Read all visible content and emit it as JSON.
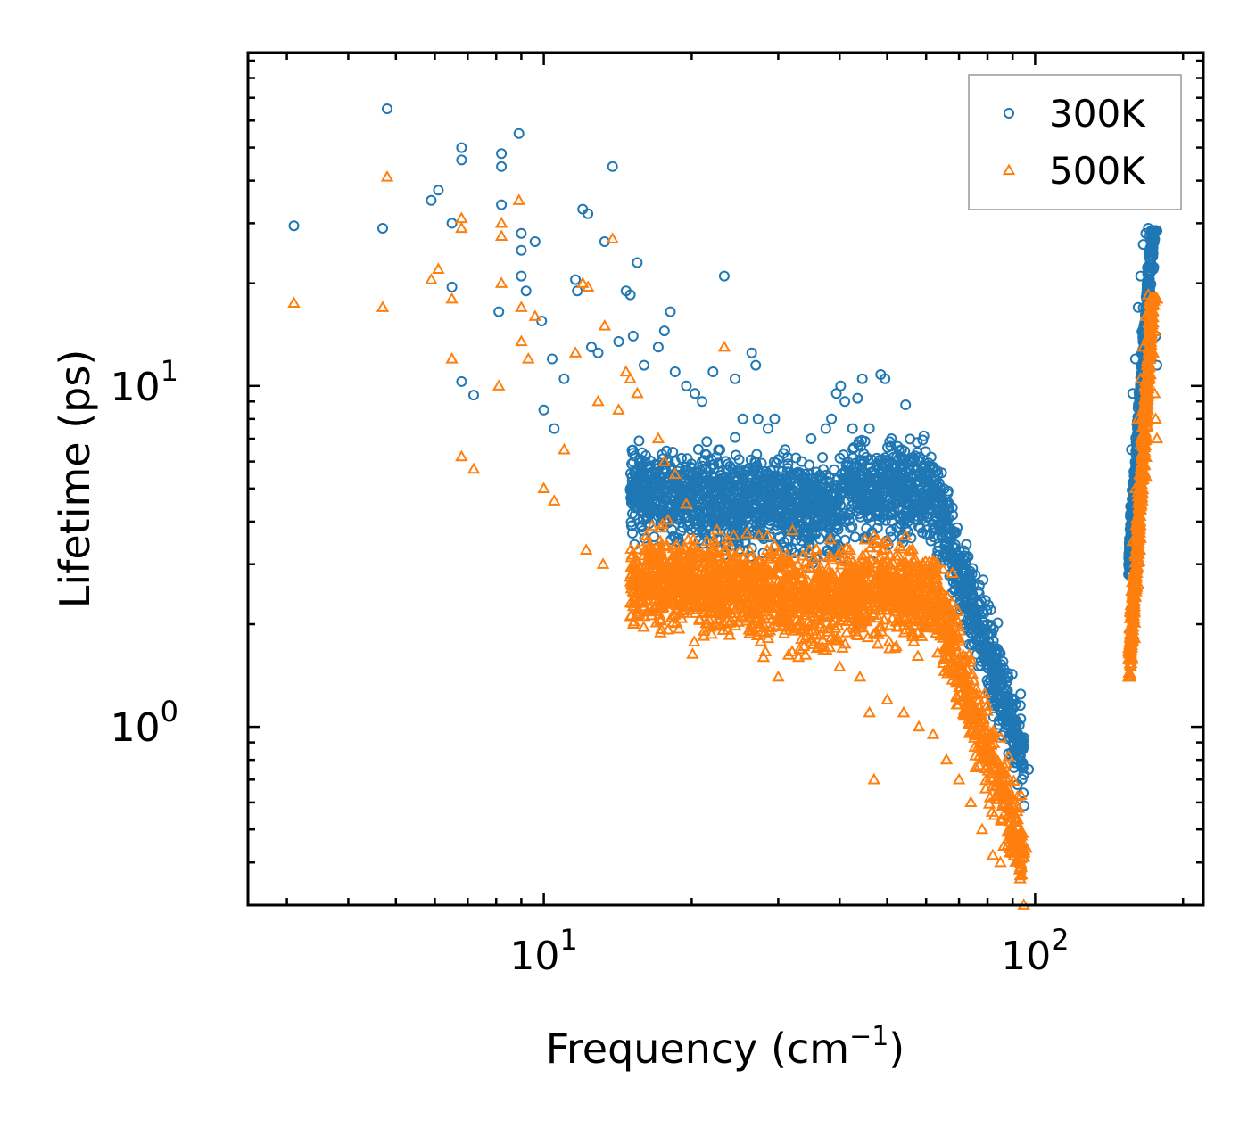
{
  "chart_data": {
    "type": "scatter",
    "title": "",
    "xlabel": "Frequency (cm",
    "xlabel_sup": "−1",
    "xlabel_suffix": ")",
    "ylabel": "Lifetime (ps)",
    "xscale": "log",
    "yscale": "log",
    "xlim": [
      2.5,
      220
    ],
    "ylim": [
      0.3,
      95
    ],
    "x_major_ticks": [
      {
        "value": 10,
        "base": "10",
        "exp": "1"
      },
      {
        "value": 100,
        "base": "10",
        "exp": "2"
      }
    ],
    "y_major_ticks": [
      {
        "value": 1,
        "base": "10",
        "exp": "0"
      },
      {
        "value": 10,
        "base": "10",
        "exp": "1"
      }
    ],
    "legend_position": "top-right",
    "series": [
      {
        "name": "300K",
        "marker": "circle",
        "color": "#1f77b4",
        "points": [
          [
            3.1,
            29.5
          ],
          [
            4.7,
            29
          ],
          [
            4.8,
            65
          ],
          [
            5.9,
            35
          ],
          [
            6.1,
            37.5
          ],
          [
            6.5,
            30
          ],
          [
            6.5,
            19.5
          ],
          [
            6.8,
            50
          ],
          [
            6.8,
            46
          ],
          [
            6.8,
            10.3
          ],
          [
            7.2,
            9.4
          ],
          [
            8.2,
            48
          ],
          [
            8.2,
            44
          ],
          [
            8.2,
            34
          ],
          [
            8.1,
            16.5
          ],
          [
            8.9,
            55
          ],
          [
            9.0,
            28
          ],
          [
            9.0,
            25
          ],
          [
            9.0,
            21
          ],
          [
            9.2,
            19
          ],
          [
            9.6,
            26.5
          ],
          [
            9.9,
            15.5
          ],
          [
            10.0,
            8.5
          ],
          [
            10.4,
            12
          ],
          [
            10.5,
            7.5
          ],
          [
            11.0,
            10.5
          ],
          [
            11.6,
            20.5
          ],
          [
            11.7,
            19
          ],
          [
            12.0,
            33
          ],
          [
            12.3,
            32
          ],
          [
            12.5,
            13
          ],
          [
            12.9,
            12.5
          ],
          [
            13.3,
            26.5
          ],
          [
            13.8,
            44
          ],
          [
            14.2,
            13.5
          ],
          [
            14.7,
            19
          ],
          [
            15.0,
            18.5
          ],
          [
            15.5,
            23
          ],
          [
            15.2,
            14
          ],
          [
            16.0,
            11.5
          ],
          [
            17.1,
            13
          ],
          [
            17.6,
            14.5
          ],
          [
            18.1,
            16.5
          ],
          [
            18.5,
            11
          ],
          [
            19.5,
            10
          ],
          [
            20.3,
            9.5
          ],
          [
            21.0,
            9
          ],
          [
            22.1,
            11
          ],
          [
            23.3,
            21
          ],
          [
            24.5,
            10.5
          ],
          [
            25.4,
            8
          ],
          [
            26.5,
            12.5
          ],
          [
            27.0,
            11.5
          ],
          [
            27.3,
            8
          ],
          [
            28.6,
            7.5
          ],
          [
            29.5,
            8
          ],
          [
            31.0,
            6.5
          ],
          [
            33.5,
            6
          ],
          [
            35.0,
            7
          ],
          [
            37.5,
            7.5
          ],
          [
            38.5,
            8
          ],
          [
            39.4,
            9.5
          ],
          [
            40.2,
            10
          ],
          [
            41.0,
            9
          ],
          [
            42.5,
            7.5
          ],
          [
            43.5,
            9.2
          ],
          [
            44.5,
            10.5
          ],
          [
            46.0,
            7.5
          ],
          [
            48.5,
            10.8
          ],
          [
            49.5,
            10.5
          ],
          [
            51.0,
            7
          ],
          [
            53.5,
            6.5
          ],
          [
            54.5,
            8.8
          ],
          [
            58.0,
            6
          ],
          [
            62.0,
            5
          ],
          [
            65.0,
            4.6
          ],
          [
            66.0,
            3.8
          ],
          [
            70.0,
            3
          ],
          [
            73.0,
            2.6
          ],
          [
            77.0,
            2.6
          ],
          [
            80.0,
            2
          ],
          [
            83.0,
            1.5
          ],
          [
            87.0,
            1.2
          ],
          [
            90.0,
            0.95
          ],
          [
            92.0,
            0.85
          ],
          [
            97.0,
            0.75
          ],
          [
            155.0,
            3.0
          ],
          [
            157.0,
            6.5
          ],
          [
            158.0,
            9.5
          ],
          [
            160.0,
            12
          ],
          [
            162.0,
            17
          ],
          [
            164.0,
            21
          ],
          [
            166.0,
            26
          ],
          [
            168.0,
            28
          ],
          [
            170.0,
            29
          ],
          [
            172.0,
            27
          ],
          [
            174.0,
            22
          ],
          [
            175.0,
            18
          ],
          [
            176.0,
            14
          ],
          [
            177.0,
            11.5
          ]
        ]
      },
      {
        "name": "500K",
        "marker": "triangle",
        "color": "#ff7f0e",
        "points": [
          [
            3.1,
            17.5
          ],
          [
            4.7,
            17
          ],
          [
            4.8,
            41
          ],
          [
            5.9,
            20.5
          ],
          [
            6.1,
            22
          ],
          [
            6.5,
            18
          ],
          [
            6.5,
            12
          ],
          [
            6.8,
            31
          ],
          [
            6.8,
            29
          ],
          [
            6.8,
            6.2
          ],
          [
            7.2,
            5.7
          ],
          [
            8.2,
            30
          ],
          [
            8.2,
            27.5
          ],
          [
            8.1,
            10
          ],
          [
            8.2,
            20
          ],
          [
            8.9,
            35
          ],
          [
            9.0,
            17
          ],
          [
            9.0,
            13.5
          ],
          [
            9.3,
            12
          ],
          [
            9.6,
            16
          ],
          [
            10.0,
            5
          ],
          [
            10.5,
            4.6
          ],
          [
            11.0,
            6.5
          ],
          [
            11.6,
            12.5
          ],
          [
            12.0,
            20
          ],
          [
            12.3,
            19.5
          ],
          [
            12.2,
            3.3
          ],
          [
            12.9,
            9
          ],
          [
            13.3,
            15
          ],
          [
            13.8,
            27
          ],
          [
            13.2,
            3
          ],
          [
            14.2,
            8.5
          ],
          [
            14.7,
            11
          ],
          [
            15.0,
            10.5
          ],
          [
            15.5,
            9.5
          ],
          [
            16.0,
            2.5
          ],
          [
            17.1,
            7
          ],
          [
            17.6,
            6
          ],
          [
            18.5,
            5.5
          ],
          [
            19.5,
            4.5
          ],
          [
            21.5,
            3.5
          ],
          [
            23.3,
            13
          ],
          [
            23.0,
            2.5
          ],
          [
            24.5,
            2.2
          ],
          [
            26.0,
            2.3
          ],
          [
            28.0,
            1.6
          ],
          [
            30.0,
            1.4
          ],
          [
            33.0,
            1.6
          ],
          [
            36.0,
            1.7
          ],
          [
            40.0,
            1.5
          ],
          [
            44.0,
            1.4
          ],
          [
            46.0,
            1.1
          ],
          [
            47.0,
            0.7
          ],
          [
            50.0,
            1.2
          ],
          [
            54.0,
            1.1
          ],
          [
            58.0,
            1.0
          ],
          [
            62.0,
            0.95
          ],
          [
            66.0,
            0.8
          ],
          [
            70.0,
            0.7
          ],
          [
            74.0,
            0.6
          ],
          [
            78.0,
            0.5
          ],
          [
            82.0,
            0.42
          ],
          [
            85.0,
            0.4
          ],
          [
            88.0,
            0.45
          ],
          [
            92.0,
            0.48
          ],
          [
            96.0,
            0.44
          ],
          [
            155.0,
            1.7
          ],
          [
            157.0,
            2.5
          ],
          [
            158.0,
            3.5
          ],
          [
            160.0,
            5.0
          ],
          [
            162.0,
            8.0
          ],
          [
            164.0,
            10.5
          ],
          [
            166.0,
            13
          ],
          [
            168.0,
            16
          ],
          [
            170.0,
            18.5
          ],
          [
            172.0,
            16
          ],
          [
            174.0,
            12.5
          ],
          [
            175.0,
            9.5
          ],
          [
            176.0,
            8.0
          ],
          [
            177.0,
            7.0
          ]
        ]
      }
    ]
  }
}
